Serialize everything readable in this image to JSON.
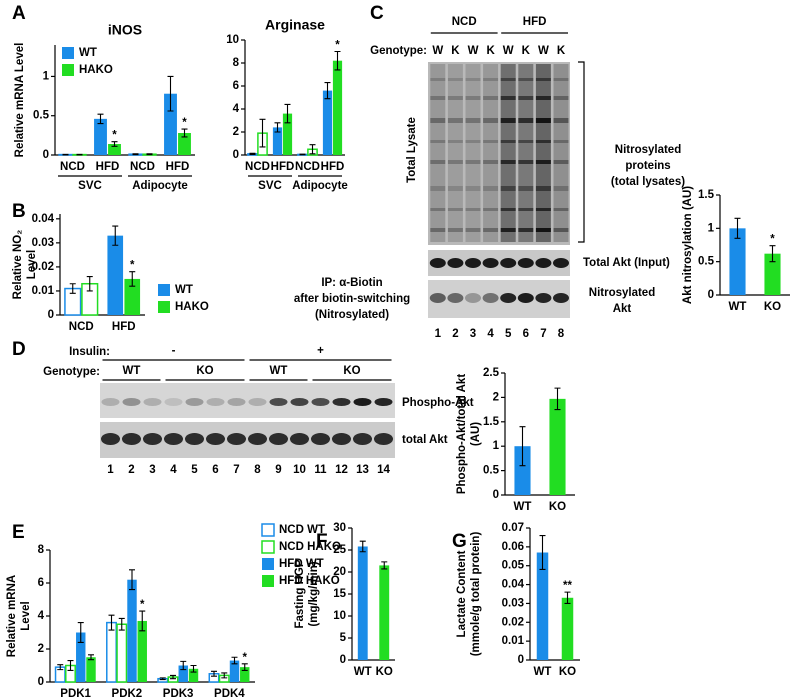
{
  "figure": {
    "panels": [
      "A",
      "B",
      "C",
      "D",
      "E",
      "F",
      "G"
    ]
  },
  "blot_c": {
    "groups": [
      "NCD",
      "HFD"
    ],
    "genotype_label": "Genotype:",
    "genotypes": [
      "W",
      "K",
      "W",
      "K",
      "W",
      "K",
      "W",
      "K"
    ],
    "side_label": "Total Lysate",
    "lysate_label": [
      "Nitrosylated",
      "proteins",
      "(total lysates)"
    ],
    "input_label": "Total Akt (Input)",
    "ip_label": [
      "IP: α-Biotin",
      "after biotin-switching",
      "(Nitrosylated)"
    ],
    "nitro_label": [
      "Nitrosylated",
      "Akt"
    ],
    "lanes": [
      1,
      2,
      3,
      4,
      5,
      6,
      7,
      8
    ]
  },
  "blot_d": {
    "treatment_label": "Insulin:",
    "treatments": [
      "-",
      "+"
    ],
    "genotype_label": "Genotype:",
    "genotypes": [
      "WT",
      "KO",
      "WT",
      "KO"
    ],
    "bands": [
      "Phospho-Akt",
      "total Akt"
    ],
    "lanes": [
      1,
      2,
      3,
      4,
      5,
      6,
      7,
      8,
      9,
      10,
      11,
      12,
      13,
      14
    ]
  },
  "chart_data": [
    {
      "type": "bar",
      "title": "iNOS",
      "ylabel": [
        "Relative mRNA Level"
      ],
      "categories": [
        "NCD",
        "HFD",
        "NCD",
        "HFD"
      ],
      "groups": [
        "SVC",
        "Adipocyte"
      ],
      "hollow": [
        true,
        false,
        true,
        false
      ],
      "legend": "upper left",
      "ylim": [
        0,
        1.4
      ],
      "yticks": [
        0,
        0.5,
        1
      ],
      "series": [
        {
          "name": "WT",
          "color": "#1a8ce8",
          "values": [
            0.005,
            0.46,
            0.01,
            0.78
          ],
          "errors": [
            0.002,
            0.06,
            0.005,
            0.22
          ],
          "markers": [
            null,
            null,
            null,
            null
          ]
        },
        {
          "name": "HAKO",
          "color": "#22dd22",
          "values": [
            0.005,
            0.14,
            0.01,
            0.28
          ],
          "errors": [
            0.002,
            0.03,
            0.005,
            0.05
          ],
          "markers": [
            null,
            "*",
            null,
            "*"
          ]
        }
      ]
    },
    {
      "type": "bar",
      "title": "Arginase",
      "categories": [
        "NCD",
        "HFD",
        "NCD",
        "HFD"
      ],
      "groups": [
        "SVC",
        "Adipocyte"
      ],
      "hollow": [
        true,
        false,
        true,
        false
      ],
      "ylim": [
        0,
        10
      ],
      "yticks": [
        0,
        2,
        4,
        6,
        8,
        10
      ],
      "series": [
        {
          "color": "#1a8ce8",
          "values": [
            0.1,
            2.4,
            0.05,
            5.6
          ],
          "errors": [
            0.05,
            0.4,
            0.02,
            0.7
          ],
          "markers": [
            null,
            null,
            null,
            null
          ]
        },
        {
          "color": "#22dd22",
          "values": [
            1.9,
            3.6,
            0.5,
            8.2
          ],
          "errors": [
            1.2,
            0.8,
            0.4,
            0.8
          ],
          "markers": [
            null,
            null,
            null,
            "*"
          ]
        }
      ]
    },
    {
      "type": "bar",
      "ylabel": [
        "Relative NO₂",
        "Level"
      ],
      "categories": [
        "NCD",
        "HFD"
      ],
      "hollow": [
        true,
        false
      ],
      "legend": "right",
      "ylim": [
        0,
        0.042
      ],
      "yticks": [
        0,
        0.01,
        0.02,
        0.03,
        0.04
      ],
      "series": [
        {
          "name": "WT",
          "color": "#1a8ce8",
          "values": [
            0.011,
            0.033
          ],
          "errors": [
            0.002,
            0.004
          ],
          "markers": [
            null,
            null
          ]
        },
        {
          "name": "HAKO",
          "color": "#22dd22",
          "values": [
            0.013,
            0.015
          ],
          "errors": [
            0.003,
            0.003
          ],
          "markers": [
            null,
            "*"
          ]
        }
      ]
    },
    {
      "type": "bar",
      "ylabel": [
        "Akt nitrosylation (AU)"
      ],
      "categories": [
        "WT",
        "KO"
      ],
      "colors": [
        "#1a8ce8",
        "#22dd22"
      ],
      "values": [
        1.0,
        0.62
      ],
      "errors": [
        0.15,
        0.12
      ],
      "markers": [
        null,
        "*"
      ],
      "ylim": [
        0,
        1.5
      ],
      "yticks": [
        0,
        0.5,
        1,
        1.5
      ]
    },
    {
      "type": "bar",
      "ylabel": [
        "Phospho-Akt/total Akt",
        "(AU)"
      ],
      "categories": [
        "WT",
        "KO"
      ],
      "colors": [
        "#1a8ce8",
        "#22dd22"
      ],
      "values": [
        1.0,
        1.97
      ],
      "errors": [
        0.4,
        0.22
      ],
      "markers": [
        null,
        null
      ],
      "ylim": [
        0,
        2.5
      ],
      "yticks": [
        0,
        0.5,
        1,
        1.5,
        2,
        2.5
      ]
    },
    {
      "type": "bar",
      "ylabel": [
        "Relative mRNA",
        "Level"
      ],
      "categories": [
        "PDK1",
        "PDK2",
        "PDK3",
        "PDK4"
      ],
      "legend": "upper right",
      "ylim": [
        0,
        8
      ],
      "yticks": [
        0,
        2,
        4,
        6,
        8
      ],
      "series": [
        {
          "name": "NCD WT",
          "color": "#1a8ce8",
          "hollow": true,
          "values": [
            0.9,
            3.6,
            0.2,
            0.5
          ],
          "errors": [
            0.15,
            0.45,
            0.05,
            0.15
          ],
          "markers": [
            null,
            null,
            null,
            null
          ]
        },
        {
          "name": "NCD HAKO",
          "color": "#22dd22",
          "hollow": true,
          "values": [
            1.0,
            3.5,
            0.3,
            0.4
          ],
          "errors": [
            0.3,
            0.35,
            0.1,
            0.15
          ],
          "markers": [
            null,
            null,
            null,
            null
          ]
        },
        {
          "name": "HFD WT",
          "color": "#1a8ce8",
          "hollow": false,
          "values": [
            3.0,
            6.2,
            1.0,
            1.3
          ],
          "errors": [
            0.6,
            0.6,
            0.25,
            0.2
          ],
          "markers": [
            null,
            null,
            null,
            null
          ]
        },
        {
          "name": "HFD HAKO",
          "color": "#22dd22",
          "hollow": false,
          "values": [
            1.5,
            3.7,
            0.8,
            0.9
          ],
          "errors": [
            0.15,
            0.6,
            0.2,
            0.2
          ],
          "markers": [
            null,
            "*",
            null,
            "*"
          ]
        }
      ]
    },
    {
      "type": "bar",
      "ylabel": [
        "Fasting HGP",
        "(mg/kg/min)"
      ],
      "categories": [
        "WT",
        "KO"
      ],
      "colors": [
        "#1a8ce8",
        "#22dd22"
      ],
      "values": [
        25.8,
        21.5
      ],
      "errors": [
        1.2,
        0.8
      ],
      "markers": [
        null,
        null
      ],
      "ylim": [
        0,
        30
      ],
      "yticks": [
        0,
        5,
        10,
        15,
        20,
        25,
        30
      ]
    },
    {
      "type": "bar",
      "ylabel": [
        "Lactate Content",
        "(mmole/g total protein)"
      ],
      "categories": [
        "WT",
        "KO"
      ],
      "colors": [
        "#1a8ce8",
        "#22dd22"
      ],
      "values": [
        0.057,
        0.033
      ],
      "errors": [
        0.009,
        0.003
      ],
      "markers": [
        null,
        "**"
      ],
      "ylim": [
        0,
        0.07
      ],
      "yticks": [
        0,
        0.01,
        0.02,
        0.03,
        0.04,
        0.05,
        0.06,
        0.07
      ]
    }
  ]
}
